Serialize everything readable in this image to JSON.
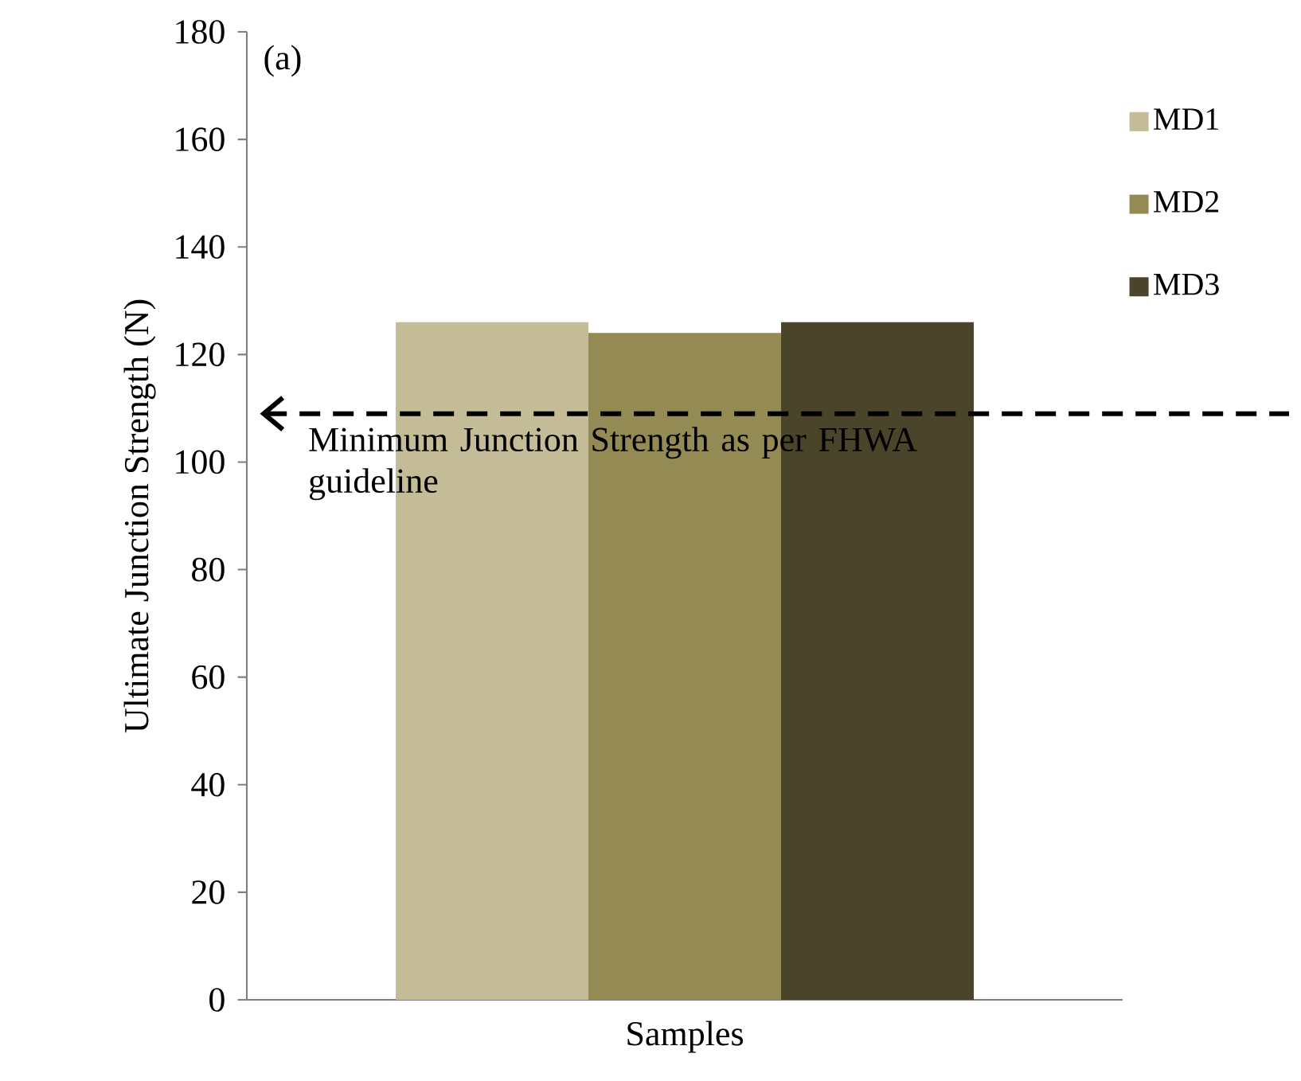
{
  "chart_data": {
    "type": "bar",
    "categories": [
      null
    ],
    "xlabel": "Samples",
    "ylabel": "Ultimate  Junction  Strength  (N)",
    "ylim": [
      0,
      180
    ],
    "yticks": [
      0,
      20,
      40,
      60,
      80,
      100,
      120,
      140,
      160,
      180
    ],
    "legend": "top right",
    "series": [
      {
        "name": "MD1",
        "color": "#c4bc96",
        "values": [
          126
        ]
      },
      {
        "name": "MD2",
        "color": "#948a54",
        "values": [
          124
        ]
      },
      {
        "name": "MD3",
        "color": "#4a442a",
        "values": [
          126
        ]
      }
    ],
    "ref_lines": [
      {
        "axis": "y",
        "value": 109,
        "label": "Minimum  Junction  Strength as per FHWA guideline",
        "line_style": "dashed",
        "color": "#000000"
      }
    ],
    "annotations": [
      "(a)"
    ]
  }
}
